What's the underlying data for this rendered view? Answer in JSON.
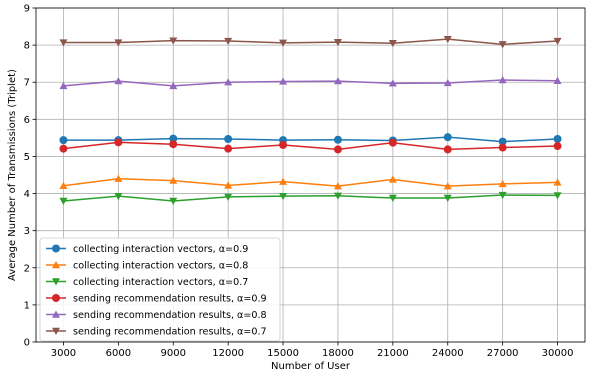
{
  "chart_data": {
    "type": "line",
    "title": "",
    "xlabel": "Number of User",
    "ylabel": "Average Number of Transmissions (Triplet)",
    "x": [
      3000,
      6000,
      9000,
      12000,
      15000,
      18000,
      21000,
      24000,
      27000,
      30000
    ],
    "x_tick_labels": [
      "3000",
      "6000",
      "9000",
      "12000",
      "15000",
      "18000",
      "21000",
      "24000",
      "27000",
      "30000"
    ],
    "xlim": [
      1500,
      31500
    ],
    "ylim": [
      0,
      9
    ],
    "y_ticks": [
      0,
      1,
      2,
      3,
      4,
      5,
      6,
      7,
      8,
      9
    ],
    "grid": true,
    "legend_position": "lower-left",
    "series": [
      {
        "name": "collecting interaction vectors, α=0.9",
        "color": "#1f77b4",
        "marker": "circle",
        "values": [
          5.44,
          5.44,
          5.48,
          5.47,
          5.44,
          5.45,
          5.43,
          5.52,
          5.4,
          5.47
        ]
      },
      {
        "name": "collecting interaction vectors, α=0.8",
        "color": "#ff7f0e",
        "marker": "triangle-up",
        "values": [
          4.21,
          4.4,
          4.35,
          4.22,
          4.32,
          4.2,
          4.38,
          4.2,
          4.26,
          4.3
        ]
      },
      {
        "name": "collecting interaction vectors, α=0.7",
        "color": "#2ca02c",
        "marker": "triangle-down",
        "values": [
          3.8,
          3.93,
          3.8,
          3.91,
          3.93,
          3.94,
          3.88,
          3.88,
          3.96,
          3.95
        ]
      },
      {
        "name": "sending recommendation results, α=0.9",
        "color": "#d62728",
        "marker": "circle",
        "values": [
          5.21,
          5.38,
          5.33,
          5.21,
          5.31,
          5.19,
          5.37,
          5.19,
          5.24,
          5.28
        ]
      },
      {
        "name": "sending recommendation results, α=0.8",
        "color": "#9467bd",
        "marker": "triangle-up",
        "values": [
          6.9,
          7.03,
          6.9,
          7.0,
          7.02,
          7.03,
          6.97,
          6.98,
          7.06,
          7.04
        ]
      },
      {
        "name": "sending recommendation results, α=0.7",
        "color": "#8c564b",
        "marker": "triangle-down",
        "values": [
          8.07,
          8.07,
          8.12,
          8.11,
          8.06,
          8.08,
          8.05,
          8.16,
          8.02,
          8.11
        ]
      }
    ]
  }
}
